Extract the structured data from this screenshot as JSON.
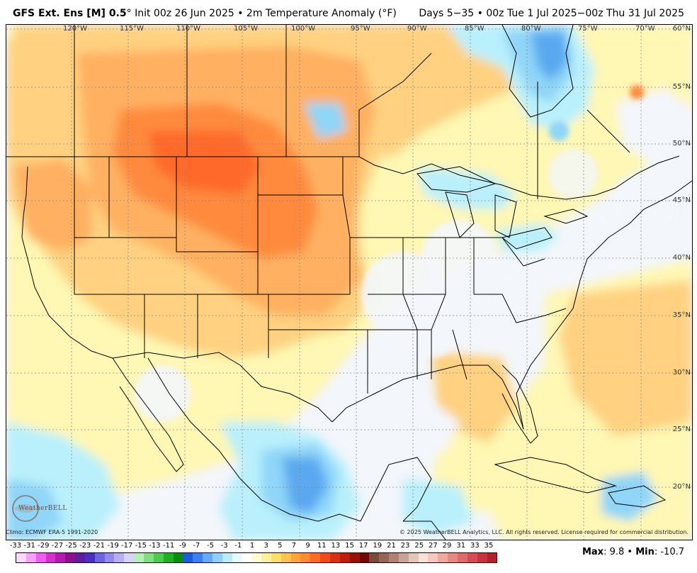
{
  "header": {
    "model": "GFS Ext.  Ens [M] 0.5",
    "degree": "°",
    "init": " Init 00z 26 Jun 2025 • 2m Temperature Anomaly (°F)",
    "valid": "Days 5−35 • 00z Tue 1 Jul 2025−00z Thu 31 Jul 2025"
  },
  "map": {
    "lon_labels": [
      "120°W",
      "115°W",
      "110°W",
      "105°W",
      "100°W",
      "95°W",
      "90°W",
      "85°W",
      "80°W",
      "75°W",
      "70°W"
    ],
    "lat_labels": [
      "60°N",
      "55°N",
      "50°N",
      "45°N",
      "40°N",
      "35°N",
      "30°N",
      "25°N",
      "20°N"
    ],
    "colors": {
      "ocean_neutral": "#f3f6fb",
      "warm_light": "#fff7b3",
      "warm_mid": "#ffd180",
      "warm_orange": "#ffb060",
      "warm_deep": "#ff8a3c",
      "warm_hot": "#ff6a2a",
      "cool_light": "#b9f0fb",
      "cool_mid": "#8fd6f8",
      "cool_blue": "#5aa8f0",
      "cool_deep": "#2f7de6"
    }
  },
  "footer": {
    "climo": "Climo: ECMWF ERA-5 1991-2020",
    "copyright": "© 2025 WeatherBELL Analytics, LLC. All rights reserved. License required for commercial distribution.",
    "logo": "WeatherBELL"
  },
  "colorbar": {
    "labels": [
      "-33",
      "-31",
      "-29",
      "-27",
      "-25",
      "-23",
      "-21",
      "-19",
      "-17",
      "-15",
      "-13",
      "-11",
      "-9",
      "-7",
      "-5",
      "-3",
      "-1",
      "1",
      "3",
      "5",
      "7",
      "9",
      "11",
      "13",
      "15",
      "17",
      "19",
      "21",
      "23",
      "25",
      "27",
      "29",
      "31",
      "33",
      "35"
    ],
    "colors": [
      "#ffd6ff",
      "#ff9cff",
      "#f25cf0",
      "#d431cf",
      "#b21ab0",
      "#8c0f8c",
      "#5f1e9c",
      "#4a2fc2",
      "#6f63e0",
      "#938ae8",
      "#b7b0f0",
      "#d8d4f8",
      "#b4f0b4",
      "#7ee07e",
      "#4ccc4c",
      "#22b022",
      "#0a8f0a",
      "#1e5ed8",
      "#3a80f0",
      "#66a9f8",
      "#8fd0fb",
      "#b8eefc",
      "#e6fbff",
      "#ffffff",
      "#fffbd2",
      "#fff09c",
      "#ffe066",
      "#ffc34d",
      "#ffa43a",
      "#ff8a30",
      "#ff6a24",
      "#f04a18",
      "#d93010",
      "#bb1e0c",
      "#961208",
      "#700a06",
      "#7a4a3a",
      "#946656",
      "#ad8474",
      "#c8a496",
      "#e2c6ba",
      "#f8e2da",
      "#f8c8c0",
      "#f0a8a0",
      "#e88884",
      "#df6a6a",
      "#d44c54",
      "#c63440",
      "#b2222e"
    ]
  },
  "stats": {
    "max_label": "Max",
    "max_value": ": 9.8 • ",
    "min_label": "Min",
    "min_value": ": -10.7"
  }
}
